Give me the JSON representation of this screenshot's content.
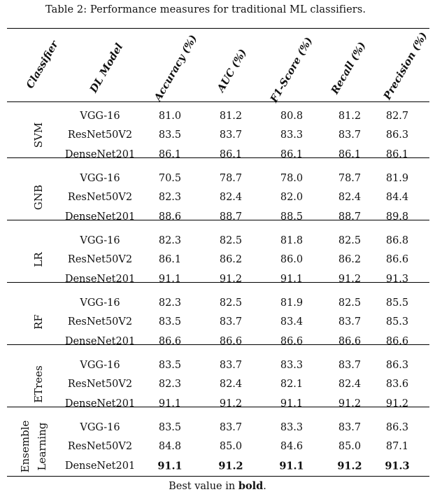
{
  "caption": "Table 2: Performance measures for traditional ML classifiers.",
  "headers": [
    "Classifier",
    "DL Model",
    "Accuracy (%)",
    "AUC (%)",
    "F1-Score (%)",
    "Recall (%)",
    "Precision (%)"
  ],
  "groups": [
    {
      "name": "SVM",
      "rows": [
        {
          "model": "VGG-16",
          "values": [
            "81.0",
            "81.2",
            "80.8",
            "81.2",
            "82.7"
          ]
        },
        {
          "model": "ResNet50V2",
          "values": [
            "83.5",
            "83.7",
            "83.3",
            "83.7",
            "86.3"
          ]
        },
        {
          "model": "DenseNet201",
          "values": [
            "86.1",
            "86.1",
            "86.1",
            "86.1",
            "86.1"
          ]
        }
      ]
    },
    {
      "name": "GNB",
      "rows": [
        {
          "model": "VGG-16",
          "values": [
            "70.5",
            "78.7",
            "78.0",
            "78.7",
            "81.9"
          ]
        },
        {
          "model": "ResNet50V2",
          "values": [
            "82.3",
            "82.4",
            "82.0",
            "82.4",
            "84.4"
          ]
        },
        {
          "model": "DenseNet201",
          "values": [
            "88.6",
            "88.7",
            "88.5",
            "88.7",
            "89.8"
          ]
        }
      ]
    },
    {
      "name": "LR",
      "rows": [
        {
          "model": "VGG-16",
          "values": [
            "82.3",
            "82.5",
            "81.8",
            "82.5",
            "86.8"
          ]
        },
        {
          "model": "ResNet50V2",
          "values": [
            "86.1",
            "86.2",
            "86.0",
            "86.2",
            "86.6"
          ]
        },
        {
          "model": "DenseNet201",
          "values": [
            "91.1",
            "91.2",
            "91.1",
            "91.2",
            "91.3"
          ]
        }
      ]
    },
    {
      "name": "RF",
      "rows": [
        {
          "model": "VGG-16",
          "values": [
            "82.3",
            "82.5",
            "81.9",
            "82.5",
            "85.5"
          ]
        },
        {
          "model": "ResNet50V2",
          "values": [
            "83.5",
            "83.7",
            "83.4",
            "83.7",
            "85.3"
          ]
        },
        {
          "model": "DenseNet201",
          "values": [
            "86.6",
            "86.6",
            "86.6",
            "86.6",
            "86.6"
          ]
        }
      ]
    },
    {
      "name": "ETrees",
      "rows": [
        {
          "model": "VGG-16",
          "values": [
            "83.5",
            "83.7",
            "83.3",
            "83.7",
            "86.3"
          ]
        },
        {
          "model": "ResNet50V2",
          "values": [
            "82.3",
            "82.4",
            "82.1",
            "82.4",
            "83.6"
          ]
        },
        {
          "model": "DenseNet201",
          "values": [
            "91.1",
            "91.2",
            "91.1",
            "91.2",
            "91.2"
          ]
        }
      ]
    },
    {
      "name": "Ensemble Learning",
      "name_lines": [
        "Ensemble",
        "Learning"
      ],
      "rows": [
        {
          "model": "VGG-16",
          "values": [
            "83.5",
            "83.7",
            "83.3",
            "83.7",
            "86.3"
          ]
        },
        {
          "model": "ResNet50V2",
          "values": [
            "84.8",
            "85.0",
            "84.6",
            "85.0",
            "87.1"
          ]
        },
        {
          "model": "DenseNet201",
          "values": [
            "91.1",
            "91.2",
            "91.1",
            "91.2",
            "91.3"
          ],
          "bold": true
        }
      ]
    }
  ],
  "footnote": {
    "prefix": "Best value in ",
    "bold": "bold",
    "suffix": "."
  }
}
